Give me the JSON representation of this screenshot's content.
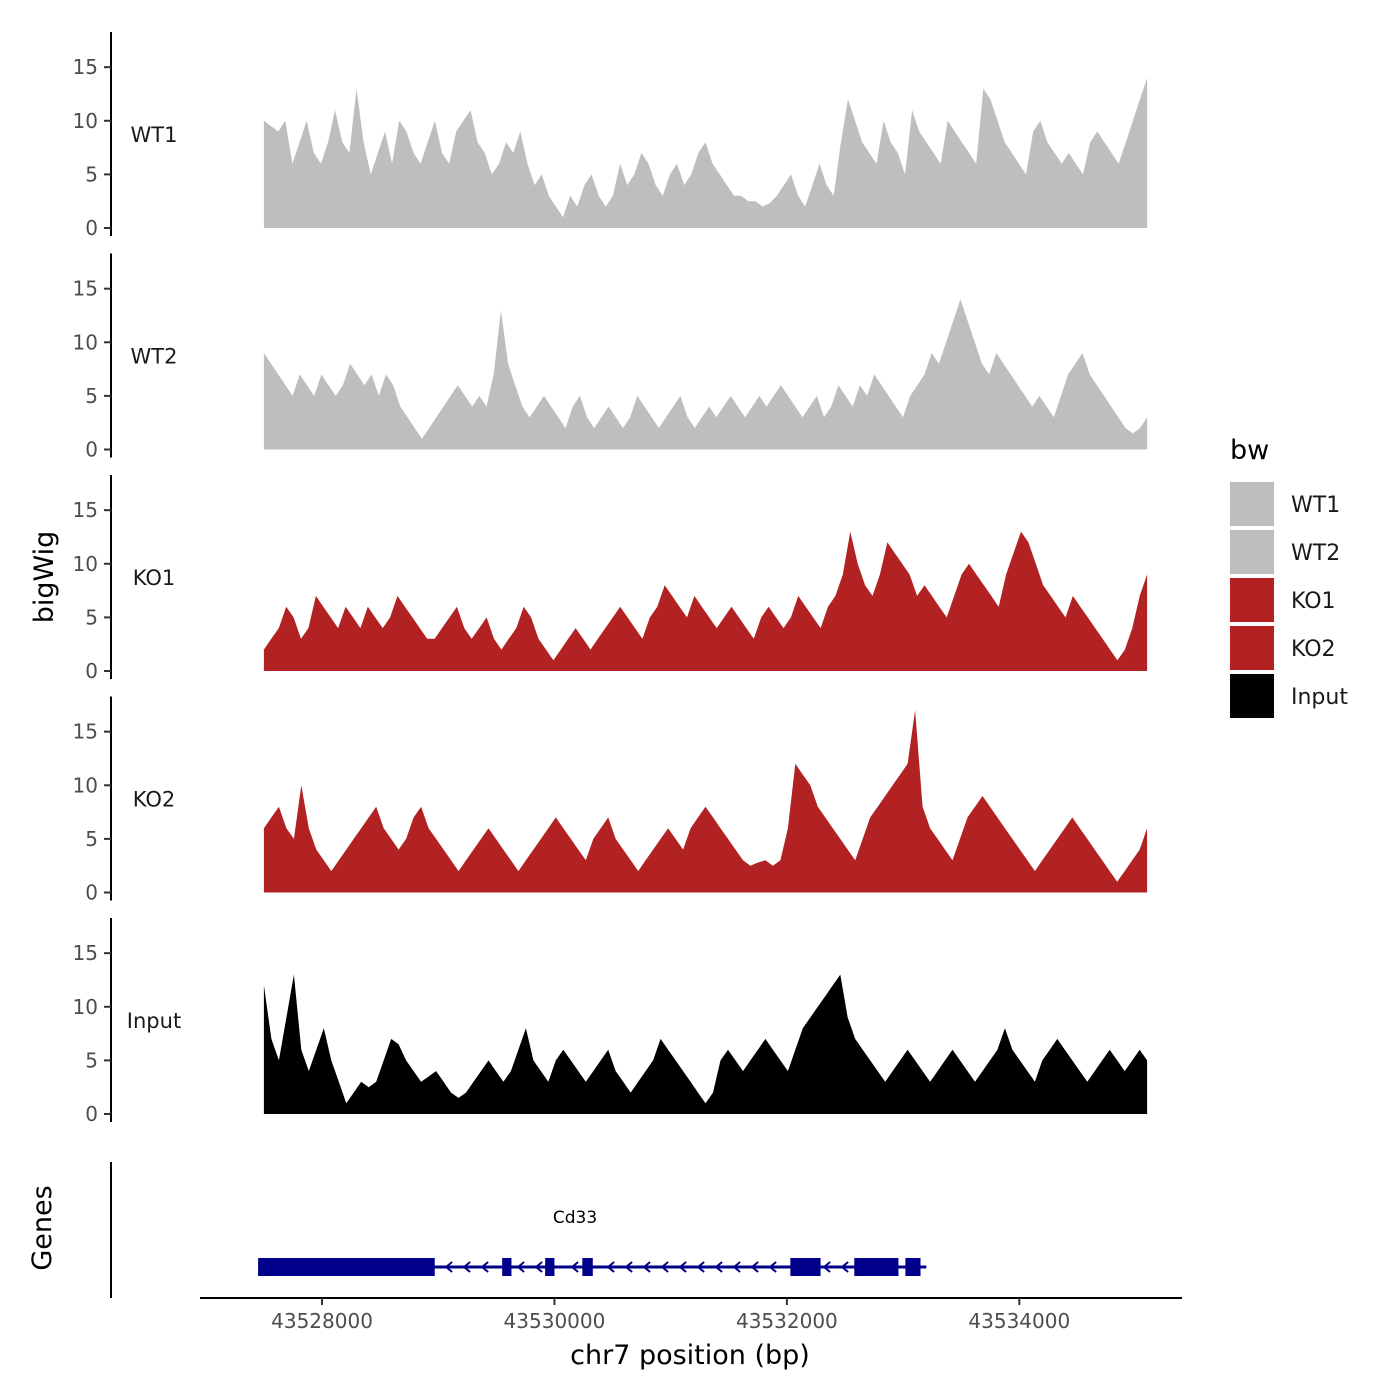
{
  "chart_data": {
    "type": "area",
    "ylabel": "bigWig",
    "xlabel": "chr7 position (bp)",
    "genes_label": "Genes",
    "ylim": [
      0,
      18
    ],
    "yticks": [
      0,
      5,
      10,
      15
    ],
    "ytick_labels": [
      "0",
      "5",
      "10",
      "15"
    ],
    "xlim": [
      43526950,
      43535400
    ],
    "xticks": [
      43528000,
      43530000,
      43532000,
      43534000
    ],
    "xtick_labels": [
      "43528000",
      "43530000",
      "43532000",
      "43534000"
    ],
    "track_start": 43527500,
    "track_end": 43535100,
    "legend": {
      "title": "bw",
      "items": [
        {
          "label": "WT1",
          "color": "#bebebe"
        },
        {
          "label": "WT2",
          "color": "#bebebe"
        },
        {
          "label": "KO1",
          "color": "#b22222"
        },
        {
          "label": "KO2",
          "color": "#b22222"
        },
        {
          "label": "Input",
          "color": "#000000"
        }
      ]
    },
    "series": [
      {
        "name": "WT1",
        "color": "#bebebe",
        "values": [
          10,
          9.5,
          9,
          10,
          6,
          8,
          10,
          7,
          6,
          8,
          11,
          8,
          7,
          13,
          8,
          5,
          7,
          9,
          6,
          10,
          9,
          7,
          6,
          8,
          10,
          7,
          6,
          9,
          10,
          11,
          8,
          7,
          5,
          6,
          8,
          7,
          9,
          6,
          4,
          5,
          3,
          2,
          1,
          3,
          2,
          4,
          5,
          3,
          2,
          3,
          6,
          4,
          5,
          7,
          6,
          4,
          3,
          5,
          6,
          4,
          5,
          7,
          8,
          6,
          5,
          4,
          3,
          3,
          2.5,
          2.5,
          2,
          2.3,
          3,
          4,
          5,
          3,
          2,
          4,
          6,
          4,
          3,
          8,
          12,
          10,
          8,
          7,
          6,
          10,
          8,
          7,
          5,
          11,
          9,
          8,
          7,
          6,
          10,
          9,
          8,
          7,
          6,
          13,
          12,
          10,
          8,
          7,
          6,
          5,
          9,
          10,
          8,
          7,
          6,
          7,
          6,
          5,
          8,
          9,
          8,
          7,
          6,
          8,
          10,
          12,
          14
        ]
      },
      {
        "name": "WT2",
        "color": "#bebebe",
        "values": [
          9,
          8,
          7,
          6,
          5,
          7,
          6,
          5,
          7,
          6,
          5,
          6,
          8,
          7,
          6,
          7,
          5,
          7,
          6,
          4,
          3,
          2,
          1,
          2,
          3,
          4,
          5,
          6,
          5,
          4,
          5,
          4,
          7,
          13,
          8,
          6,
          4,
          3,
          4,
          5,
          4,
          3,
          2,
          4,
          5,
          3,
          2,
          3,
          4,
          3,
          2,
          3,
          5,
          4,
          3,
          2,
          3,
          4,
          5,
          3,
          2,
          3,
          4,
          3,
          4,
          5,
          4,
          3,
          4,
          5,
          4,
          5,
          6,
          5,
          4,
          3,
          4,
          5,
          3,
          4,
          6,
          5,
          4,
          6,
          5,
          7,
          6,
          5,
          4,
          3,
          5,
          6,
          7,
          9,
          8,
          10,
          12,
          14,
          12,
          10,
          8,
          7,
          9,
          8,
          7,
          6,
          5,
          4,
          5,
          4,
          3,
          5,
          7,
          8,
          9,
          7,
          6,
          5,
          4,
          3,
          2,
          1.5,
          2,
          3
        ]
      },
      {
        "name": "KO1",
        "color": "#b22222",
        "values": [
          2,
          3,
          4,
          6,
          5,
          3,
          4,
          7,
          6,
          5,
          4,
          6,
          5,
          4,
          6,
          5,
          4,
          5,
          7,
          6,
          5,
          4,
          3,
          3,
          4,
          5,
          6,
          4,
          3,
          4,
          5,
          3,
          2,
          3,
          4,
          6,
          5,
          3,
          2,
          1,
          2,
          3,
          4,
          3,
          2,
          3,
          4,
          5,
          6,
          5,
          4,
          3,
          5,
          6,
          8,
          7,
          6,
          5,
          7,
          6,
          5,
          4,
          5,
          6,
          5,
          4,
          3,
          5,
          6,
          5,
          4,
          5,
          7,
          6,
          5,
          4,
          6,
          7,
          9,
          13,
          10,
          8,
          7,
          9,
          12,
          11,
          10,
          9,
          7,
          8,
          7,
          6,
          5,
          7,
          9,
          10,
          9,
          8,
          7,
          6,
          9,
          11,
          13,
          12,
          10,
          8,
          7,
          6,
          5,
          7,
          6,
          5,
          4,
          3,
          2,
          1,
          2,
          4,
          7,
          9
        ]
      },
      {
        "name": "KO2",
        "color": "#b22222",
        "values": [
          6,
          7,
          8,
          6,
          5,
          10,
          6,
          4,
          3,
          2,
          3,
          4,
          5,
          6,
          7,
          8,
          6,
          5,
          4,
          5,
          7,
          8,
          6,
          5,
          4,
          3,
          2,
          3,
          4,
          5,
          6,
          5,
          4,
          3,
          2,
          3,
          4,
          5,
          6,
          7,
          6,
          5,
          4,
          3,
          5,
          6,
          7,
          5,
          4,
          3,
          2,
          3,
          4,
          5,
          6,
          5,
          4,
          6,
          7,
          8,
          7,
          6,
          5,
          4,
          3,
          2.5,
          2.8,
          3,
          2.5,
          3,
          6,
          12,
          11,
          10,
          8,
          7,
          6,
          5,
          4,
          3,
          5,
          7,
          8,
          9,
          10,
          11,
          12,
          17,
          8,
          6,
          5,
          4,
          3,
          5,
          7,
          8,
          9,
          8,
          7,
          6,
          5,
          4,
          3,
          2,
          3,
          4,
          5,
          6,
          7,
          6,
          5,
          4,
          3,
          2,
          1,
          2,
          3,
          4,
          6
        ]
      },
      {
        "name": "Input",
        "color": "#000000",
        "values": [
          12,
          7,
          5,
          9,
          13,
          6,
          4,
          6,
          8,
          5,
          3,
          1,
          2,
          3,
          2.5,
          3,
          5,
          7,
          6.5,
          5,
          4,
          3,
          3.5,
          4,
          3,
          2,
          1.5,
          2,
          3,
          4,
          5,
          4,
          3,
          4,
          6,
          8,
          5,
          4,
          3,
          5,
          6,
          5,
          4,
          3,
          4,
          5,
          6,
          4,
          3,
          2,
          3,
          4,
          5,
          7,
          6,
          5,
          4,
          3,
          2,
          1,
          2,
          5,
          6,
          5,
          4,
          5,
          6,
          7,
          6,
          5,
          4,
          6,
          8,
          9,
          10,
          11,
          12,
          13,
          9,
          7,
          6,
          5,
          4,
          3,
          4,
          5,
          6,
          5,
          4,
          3,
          4,
          5,
          6,
          5,
          4,
          3,
          4,
          5,
          6,
          8,
          6,
          5,
          4,
          3,
          5,
          6,
          7,
          6,
          5,
          4,
          3,
          4,
          5,
          6,
          5,
          4,
          5,
          6,
          5
        ]
      }
    ],
    "gene": {
      "name": "Cd33",
      "strand": "-",
      "color": "#00008b",
      "span": [
        43527450,
        43533200
      ],
      "exons": [
        [
          43527450,
          43528970
        ],
        [
          43529550,
          43529630
        ],
        [
          43529920,
          43530000
        ],
        [
          43530240,
          43530330
        ],
        [
          43532030,
          43532290
        ],
        [
          43532580,
          43532960
        ],
        [
          43533020,
          43533150
        ]
      ]
    }
  }
}
